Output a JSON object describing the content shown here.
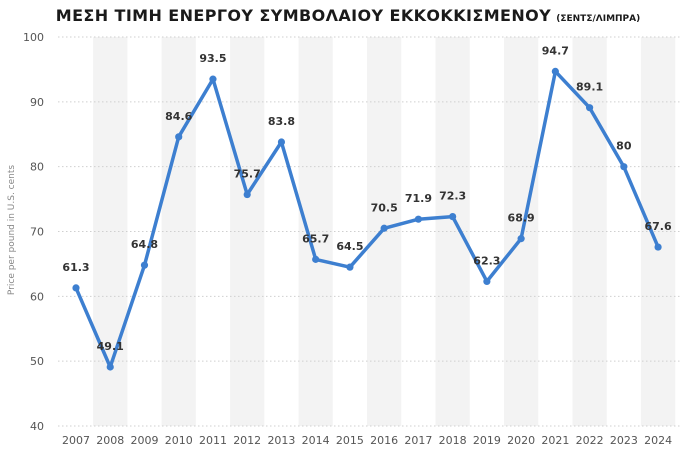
{
  "title": "ΜΕΣΗ ΤΙΜΗ ΕΝΕΡΓΟΥ ΣΥΜΒΟΛΑΙΟΥ ΕΚΚΟΚΚΙΣΜΕΝΟΥ",
  "subtitle": "(ΣΕΝΤΣ/ΛΙΜΠΡΑ)",
  "chart_data": {
    "type": "line",
    "title": "ΜΕΣΗ ΤΙΜΗ ΕΝΕΡΓΟΥ ΣΥΜΒΟΛΑΙΟΥ ΕΚΚΟΚΚΙΣΜΕΝΟΥ (ΣΕΝΤΣ/ΛΙΜΠΡΑ)",
    "xlabel": "",
    "ylabel": "Price per pound in U.S. cents",
    "categories": [
      "2007",
      "2008",
      "2009",
      "2010",
      "2011",
      "2012",
      "2013",
      "2014",
      "2015",
      "2016",
      "2017",
      "2018",
      "2019",
      "2020",
      "2021",
      "2022",
      "2023",
      "2024"
    ],
    "values": [
      61.3,
      49.1,
      64.8,
      84.6,
      93.5,
      75.7,
      83.8,
      65.7,
      64.5,
      70.5,
      71.9,
      72.3,
      62.3,
      68.9,
      94.7,
      89.1,
      80,
      67.6
    ],
    "value_labels": [
      "61.3",
      "49.1",
      "64.8",
      "84.6",
      "93.5",
      "75.7",
      "83.8",
      "65.7",
      "64.5",
      "70.5",
      "71.9",
      "72.3",
      "62.3",
      "68.9",
      "94.7",
      "89.1",
      "80",
      "67.6"
    ],
    "ylim": [
      40,
      100
    ],
    "yticks": [
      40,
      50,
      60,
      70,
      80,
      90,
      100
    ],
    "ytick_labels": [
      "40",
      "50",
      "60",
      "70",
      "80",
      "90",
      "100"
    ],
    "grid": true,
    "line_color": "#3d7fd0"
  }
}
